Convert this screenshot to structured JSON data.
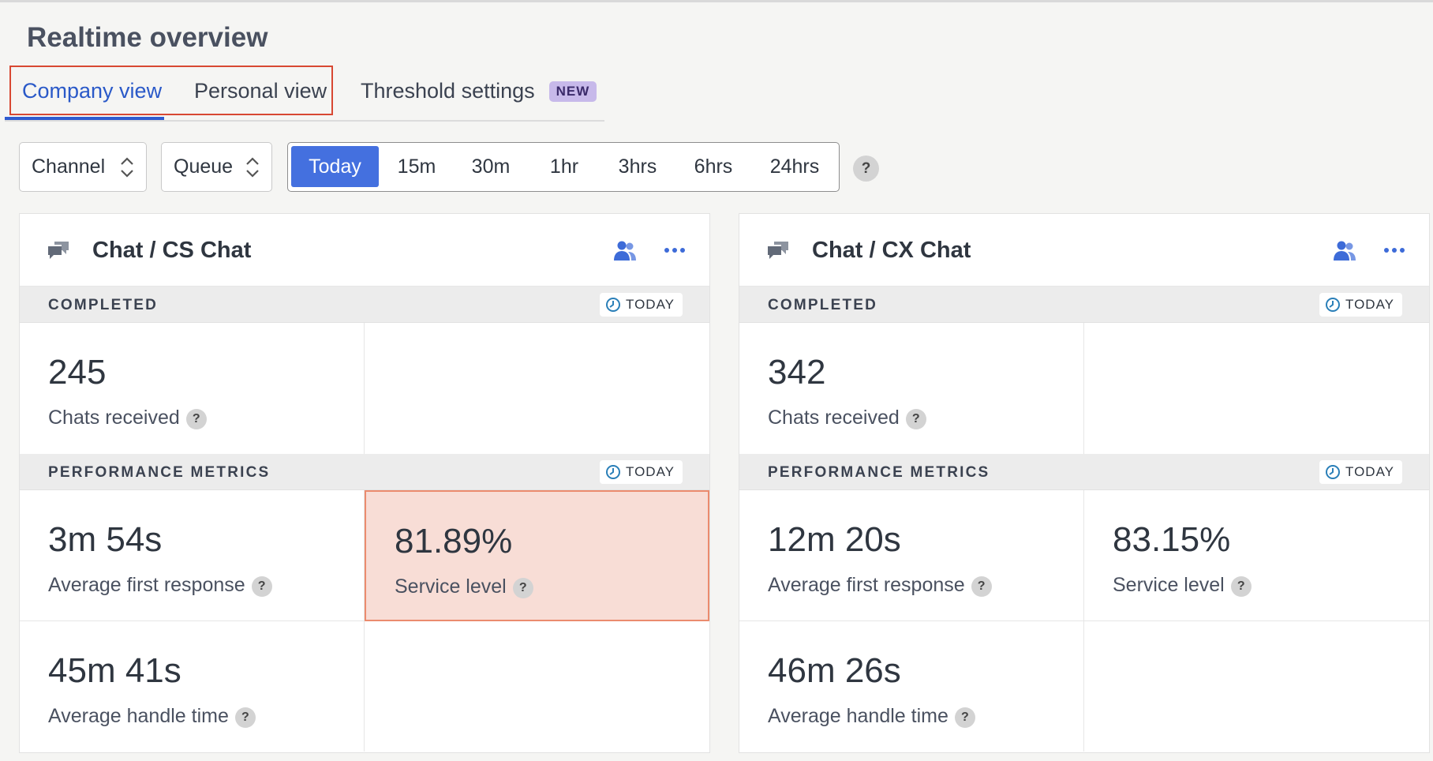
{
  "header": {
    "title": "Realtime overview"
  },
  "tabs": [
    {
      "label": "Company view",
      "active": true
    },
    {
      "label": "Personal view",
      "active": false
    },
    {
      "label": "Threshold settings",
      "badge": "NEW",
      "active": false
    }
  ],
  "filters": {
    "channel": "Channel",
    "queue": "Queue",
    "time_ranges": [
      "Today",
      "15m",
      "30m",
      "1hr",
      "3hrs",
      "6hrs",
      "24hrs"
    ],
    "selected_range": "Today",
    "help": "?"
  },
  "cards": [
    {
      "title": "Chat / CS Chat",
      "completed": {
        "label": "COMPLETED",
        "period": "TODAY",
        "chats_received": {
          "value": "245",
          "label": "Chats received"
        }
      },
      "performance": {
        "label": "PERFORMANCE METRICS",
        "period": "TODAY",
        "avg_first_response": {
          "value": "3m 54s",
          "label": "Average first response"
        },
        "service_level": {
          "value": "81.89%",
          "label": "Service level",
          "alert": true
        },
        "avg_handle_time": {
          "value": "45m 41s",
          "label": "Average handle time"
        }
      }
    },
    {
      "title": "Chat / CX Chat",
      "completed": {
        "label": "COMPLETED",
        "period": "TODAY",
        "chats_received": {
          "value": "342",
          "label": "Chats received"
        }
      },
      "performance": {
        "label": "PERFORMANCE METRICS",
        "period": "TODAY",
        "avg_first_response": {
          "value": "12m 20s",
          "label": "Average first response"
        },
        "service_level": {
          "value": "83.15%",
          "label": "Service level",
          "alert": false
        },
        "avg_handle_time": {
          "value": "46m 26s",
          "label": "Average handle time"
        }
      }
    }
  ],
  "colors": {
    "accent": "#4470df",
    "active_tab": "#2a59c8",
    "highlight_border": "#d84832",
    "alert_bg": "#f8ddd6",
    "alert_border": "#eb8b6e",
    "badge_bg": "#c7b9ea"
  },
  "icons": {
    "card": "chat-bubbles-icon",
    "agents": "agents-icon",
    "more": "more-horizontal-icon",
    "clock": "clock-icon",
    "select": "chevron-up-down-icon"
  }
}
